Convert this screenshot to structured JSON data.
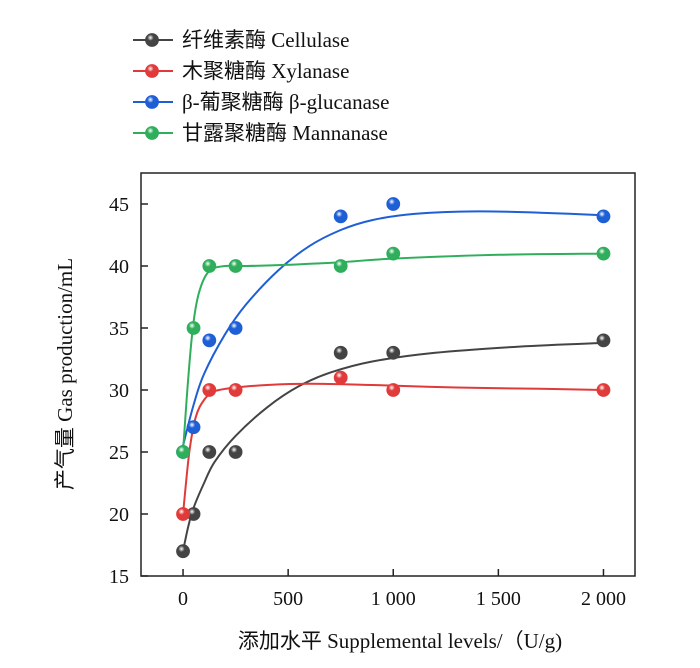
{
  "chart_data": {
    "type": "scatter",
    "title": "",
    "xlabel": "添加水平 Supplemental levels/（U/g)",
    "ylabel": "产气量 Gas production/mL",
    "xlim": [
      -200,
      2150
    ],
    "ylim": [
      15,
      47.5
    ],
    "xticks": [
      0,
      500,
      1000,
      1500,
      2000
    ],
    "xtick_labels": [
      "0",
      "500",
      "1 000",
      "1 500",
      "2 000"
    ],
    "yticks": [
      15,
      20,
      25,
      30,
      35,
      40,
      45
    ],
    "ytick_labels": [
      "15",
      "20",
      "25",
      "30",
      "35",
      "40",
      "45"
    ],
    "grid": false,
    "legend_position": "top-left",
    "series": [
      {
        "name": "纤维素酶 Cellulase",
        "color": "#444444",
        "x": [
          0,
          50,
          125,
          250,
          750,
          1000,
          2000
        ],
        "y": [
          17,
          20,
          25,
          25,
          33,
          33,
          34
        ],
        "fit": [
          [
            0,
            17
          ],
          [
            25,
            19
          ],
          [
            50,
            20.5
          ],
          [
            100,
            22.5
          ],
          [
            150,
            24.2
          ],
          [
            250,
            26.3
          ],
          [
            400,
            28.6
          ],
          [
            550,
            30.3
          ],
          [
            700,
            31.4
          ],
          [
            900,
            32.3
          ],
          [
            1200,
            33.0
          ],
          [
            1600,
            33.5
          ],
          [
            2000,
            33.8
          ]
        ]
      },
      {
        "name": "木聚糖酶 Xylanase",
        "color": "#e03a3a",
        "x": [
          0,
          125,
          250,
          750,
          1000,
          2000
        ],
        "y": [
          20,
          30,
          30,
          31,
          30,
          30
        ],
        "fit": [
          [
            0,
            20
          ],
          [
            30,
            25
          ],
          [
            60,
            27.8
          ],
          [
            100,
            29.2
          ],
          [
            150,
            29.9
          ],
          [
            250,
            30.2
          ],
          [
            400,
            30.4
          ],
          [
            600,
            30.5
          ],
          [
            900,
            30.4
          ],
          [
            1300,
            30.2
          ],
          [
            1700,
            30.1
          ],
          [
            2000,
            30
          ]
        ]
      },
      {
        "name": "β-葡聚糖酶 β-glucanase",
        "color": "#1e5fd6",
        "x": [
          0,
          50,
          125,
          250,
          750,
          1000,
          2000
        ],
        "y": [
          25,
          27,
          34,
          35,
          44,
          45,
          44
        ],
        "fit": [
          [
            0,
            25.5
          ],
          [
            50,
            28.8
          ],
          [
            100,
            31.3
          ],
          [
            200,
            34.5
          ],
          [
            300,
            36.9
          ],
          [
            450,
            39.6
          ],
          [
            600,
            41.6
          ],
          [
            750,
            42.9
          ],
          [
            900,
            43.7
          ],
          [
            1100,
            44.2
          ],
          [
            1400,
            44.4
          ],
          [
            1700,
            44.3
          ],
          [
            2000,
            44.1
          ]
        ]
      },
      {
        "name": "甘露聚糖酶 Mannanase",
        "color": "#2fae5b",
        "x": [
          0,
          50,
          125,
          250,
          750,
          1000,
          2000
        ],
        "y": [
          25,
          35,
          40,
          40,
          40,
          41,
          41
        ],
        "fit": [
          [
            0,
            25
          ],
          [
            25,
            31
          ],
          [
            50,
            35.5
          ],
          [
            80,
            38.1
          ],
          [
            125,
            39.6
          ],
          [
            200,
            40
          ],
          [
            300,
            40
          ],
          [
            500,
            40.1
          ],
          [
            750,
            40.3
          ],
          [
            1000,
            40.6
          ],
          [
            1500,
            40.9
          ],
          [
            2000,
            41
          ]
        ]
      }
    ]
  }
}
